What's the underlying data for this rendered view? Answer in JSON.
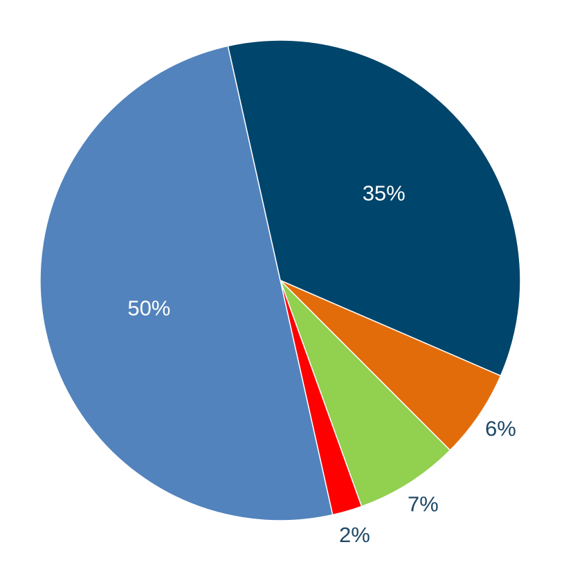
{
  "chart_data": {
    "type": "pie",
    "values": [
      35,
      6,
      7,
      2,
      50
    ],
    "value_labels": [
      "35%",
      "6%",
      "7%",
      "2%",
      "50%"
    ],
    "colors": [
      "#00456b",
      "#e36c0a",
      "#92d050",
      "#ff0000",
      "#5283bd"
    ]
  }
}
